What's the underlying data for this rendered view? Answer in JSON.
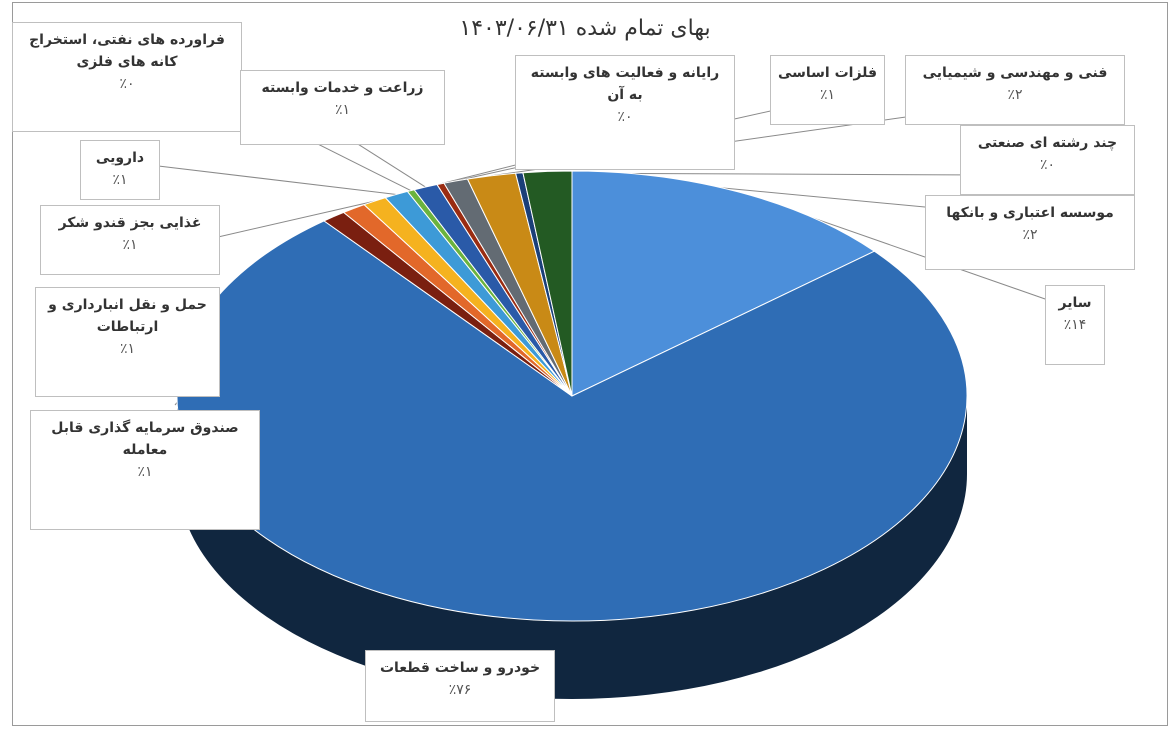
{
  "chart_data": {
    "type": "pie",
    "title": "بهای تمام شده ۱۴۰۳/۰۶/۳۱",
    "slices": [
      {
        "label": "خودرو و ساخت قطعات",
        "value_label": "٪۷۶",
        "value": 76,
        "color": "#2f6db5"
      },
      {
        "label": "صندوق سرمایه گذاری قابل معامله",
        "value_label": "٪۱",
        "value": 1,
        "color": "#7a1f10"
      },
      {
        "label": "حمل و نقل انبارداری و ارتباطات",
        "value_label": "٪۱",
        "value": 1,
        "color": "#e2682a"
      },
      {
        "label": "غذایی بجز قندو شکر",
        "value_label": "٪۱",
        "value": 1,
        "color": "#f5b21f"
      },
      {
        "label": "دارویی",
        "value_label": "٪۱",
        "value": 1,
        "color": "#3d9ad7"
      },
      {
        "label": "فراورده های نفتی، استخراج کانه های فلزی",
        "value_label": "٪۰",
        "value": 0.3,
        "color": "#6bb33e"
      },
      {
        "label": "زراعت و خدمات وابسته",
        "value_label": "٪۱",
        "value": 1,
        "color": "#2a5aa8"
      },
      {
        "label": "رایانه و فعالیت های وابسته به آن",
        "value_label": "٪۰",
        "value": 0.3,
        "color": "#9a2c12"
      },
      {
        "label": "فلزات اساسی",
        "value_label": "٪۱",
        "value": 1,
        "color": "#636b73"
      },
      {
        "label": "فنی و مهندسی و شیمیایی",
        "value_label": "٪۲",
        "value": 2,
        "color": "#c98a16"
      },
      {
        "label": "چند رشته ای صنعتی",
        "value_label": "٪۰",
        "value": 0.3,
        "color": "#1a3f78"
      },
      {
        "label": "موسسه اعتباری و بانکها",
        "value_label": "٪۲",
        "value": 2,
        "color": "#235a23"
      },
      {
        "label": "سایر",
        "value_label": "٪۱۴",
        "value": 14,
        "color": "#4c8fda"
      }
    ]
  }
}
